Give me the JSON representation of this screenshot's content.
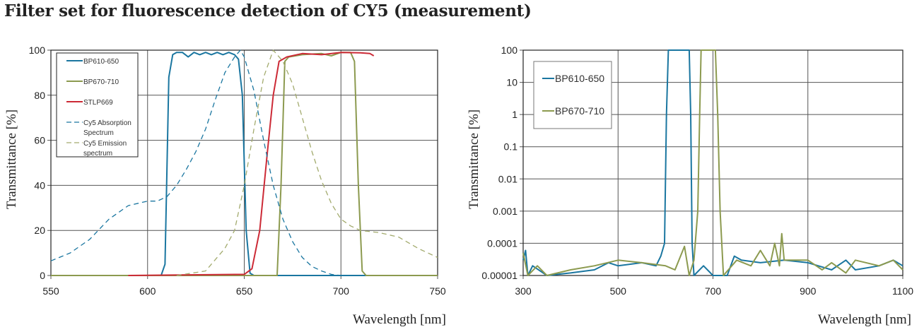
{
  "title": "Filter set for fluorescence detection of CY5 (measurement)",
  "chart_data": [
    {
      "type": "line",
      "xlabel": "Wavelength [nm]",
      "ylabel": "Transmittance [%]",
      "xlim": [
        550,
        750
      ],
      "ylim": [
        0,
        100
      ],
      "xticks": [
        "550",
        "600",
        "650",
        "700",
        "750"
      ],
      "yticks": [
        "0",
        "20",
        "40",
        "60",
        "80",
        "100"
      ],
      "grid": true,
      "legend_position": "top-left",
      "series": [
        {
          "name": "BP610-650",
          "color": "#1a76a0",
          "dash": false,
          "points": [
            [
              550,
              0
            ],
            [
              607,
              0
            ],
            [
              609,
              5
            ],
            [
              611,
              88
            ],
            [
              613,
              98
            ],
            [
              615,
              99
            ],
            [
              618,
              99
            ],
            [
              621,
              97
            ],
            [
              624,
              99
            ],
            [
              627,
              98
            ],
            [
              630,
              99
            ],
            [
              633,
              98
            ],
            [
              636,
              99
            ],
            [
              639,
              98
            ],
            [
              642,
              99
            ],
            [
              645,
              98
            ],
            [
              647,
              96
            ],
            [
              649,
              80
            ],
            [
              651,
              20
            ],
            [
              653,
              1
            ],
            [
              655,
              0
            ],
            [
              750,
              0
            ]
          ]
        },
        {
          "name": "BP670-710",
          "color": "#8c9a4f",
          "dash": false,
          "points": [
            [
              550,
              0
            ],
            [
              667,
              0
            ],
            [
              669,
              40
            ],
            [
              671,
              95
            ],
            [
              673,
              97
            ],
            [
              680,
              98
            ],
            [
              690,
              98.5
            ],
            [
              695,
              97.5
            ],
            [
              700,
              99
            ],
            [
              705,
              99
            ],
            [
              707,
              95
            ],
            [
              709,
              40
            ],
            [
              711,
              2
            ],
            [
              713,
              0
            ],
            [
              750,
              0
            ]
          ]
        },
        {
          "name": "STLP669",
          "color": "#cc2a36",
          "dash": false,
          "points": [
            [
              590,
              0
            ],
            [
              650,
              0.5
            ],
            [
              654,
              3
            ],
            [
              658,
              20
            ],
            [
              662,
              55
            ],
            [
              665,
              80
            ],
            [
              668,
              95
            ],
            [
              672,
              97
            ],
            [
              680,
              98.5
            ],
            [
              690,
              98
            ],
            [
              700,
              99
            ],
            [
              710,
              98.8
            ],
            [
              715,
              98.5
            ],
            [
              717,
              97.5
            ]
          ]
        },
        {
          "name": "Cy5 Absorption Spectrum",
          "color": "#1a76a0",
          "dash": true,
          "points": [
            [
              550,
              6.5
            ],
            [
              560,
              10
            ],
            [
              570,
              16
            ],
            [
              580,
              25
            ],
            [
              590,
              31
            ],
            [
              600,
              33
            ],
            [
              605,
              33
            ],
            [
              610,
              35
            ],
            [
              615,
              40
            ],
            [
              620,
              47
            ],
            [
              625,
              55
            ],
            [
              630,
              65
            ],
            [
              635,
              78
            ],
            [
              640,
              90
            ],
            [
              645,
              97
            ],
            [
              648,
              100
            ],
            [
              650,
              97
            ],
            [
              655,
              82
            ],
            [
              660,
              60
            ],
            [
              665,
              40
            ],
            [
              670,
              25
            ],
            [
              675,
              15
            ],
            [
              680,
              8
            ],
            [
              685,
              4
            ],
            [
              690,
              2
            ],
            [
              695,
              0.5
            ],
            [
              700,
              0
            ]
          ]
        },
        {
          "name": "Cy5 Emission spectrum",
          "color": "#a3ab6e",
          "dash": true,
          "points": [
            [
              615,
              0
            ],
            [
              630,
              2
            ],
            [
              640,
              12
            ],
            [
              645,
              20
            ],
            [
              650,
              40
            ],
            [
              655,
              65
            ],
            [
              660,
              88
            ],
            [
              665,
              100
            ],
            [
              670,
              95
            ],
            [
              675,
              85
            ],
            [
              680,
              70
            ],
            [
              685,
              55
            ],
            [
              690,
              42
            ],
            [
              695,
              32
            ],
            [
              700,
              25
            ],
            [
              705,
              22
            ],
            [
              710,
              20
            ],
            [
              720,
              19
            ],
            [
              730,
              17
            ],
            [
              740,
              12
            ],
            [
              750,
              8
            ]
          ]
        }
      ]
    },
    {
      "type": "line",
      "xlabel": "Wavelength [nm]",
      "ylabel": "Transmittance [%]",
      "xlim": [
        300,
        1100
      ],
      "ylim": [
        1e-05,
        100
      ],
      "yscale": "log",
      "xticks": [
        "300",
        "500",
        "700",
        "900",
        "1100"
      ],
      "yticks": [
        "0.00001",
        "0.0001",
        "0.001",
        "0.01",
        "0.1",
        "1",
        "10",
        "100"
      ],
      "grid": true,
      "legend_position": "top-left",
      "series": [
        {
          "name": "BP610-650",
          "color": "#1a76a0",
          "points": [
            [
              300,
              3e-05
            ],
            [
              305,
              6e-05
            ],
            [
              310,
              1e-05
            ],
            [
              320,
              2e-05
            ],
            [
              350,
              1e-05
            ],
            [
              400,
              1.2e-05
            ],
            [
              450,
              1.5e-05
            ],
            [
              480,
              2.5e-05
            ],
            [
              500,
              2e-05
            ],
            [
              550,
              2.5e-05
            ],
            [
              580,
              2e-05
            ],
            [
              590,
              4e-05
            ],
            [
              598,
              0.0001
            ],
            [
              602,
              1
            ],
            [
              606,
              100
            ],
            [
              650,
              100
            ],
            [
              653,
              1
            ],
            [
              656,
              0.0001
            ],
            [
              660,
              1e-05
            ],
            [
              680,
              2e-05
            ],
            [
              700,
              1e-05
            ],
            [
              730,
              1e-05
            ],
            [
              745,
              4e-05
            ],
            [
              760,
              3e-05
            ],
            [
              800,
              2.5e-05
            ],
            [
              850,
              3e-05
            ],
            [
              900,
              2.5e-05
            ],
            [
              950,
              1.5e-05
            ],
            [
              980,
              3e-05
            ],
            [
              1000,
              1.5e-05
            ],
            [
              1050,
              2e-05
            ],
            [
              1080,
              3e-05
            ],
            [
              1100,
              2e-05
            ]
          ]
        },
        {
          "name": "BP670-710",
          "color": "#8c9a4f",
          "points": [
            [
              300,
              5e-05
            ],
            [
              310,
              1e-05
            ],
            [
              330,
              2e-05
            ],
            [
              350,
              1e-05
            ],
            [
              400,
              1.5e-05
            ],
            [
              450,
              2e-05
            ],
            [
              500,
              3e-05
            ],
            [
              550,
              2.5e-05
            ],
            [
              600,
              2e-05
            ],
            [
              620,
              1.5e-05
            ],
            [
              640,
              8e-05
            ],
            [
              650,
              1e-05
            ],
            [
              660,
              3e-05
            ],
            [
              668,
              0.001
            ],
            [
              672,
              1
            ],
            [
              675,
              100
            ],
            [
              705,
              100
            ],
            [
              710,
              1
            ],
            [
              715,
              0.001
            ],
            [
              722,
              1e-05
            ],
            [
              750,
              3e-05
            ],
            [
              780,
              2e-05
            ],
            [
              800,
              6e-05
            ],
            [
              820,
              2e-05
            ],
            [
              830,
              0.0001
            ],
            [
              840,
              2e-05
            ],
            [
              845,
              0.0002
            ],
            [
              850,
              3e-05
            ],
            [
              900,
              3e-05
            ],
            [
              930,
              1.5e-05
            ],
            [
              950,
              2.5e-05
            ],
            [
              980,
              1.2e-05
            ],
            [
              1000,
              3e-05
            ],
            [
              1050,
              2e-05
            ],
            [
              1080,
              3e-05
            ],
            [
              1100,
              1.5e-05
            ]
          ]
        }
      ]
    }
  ]
}
